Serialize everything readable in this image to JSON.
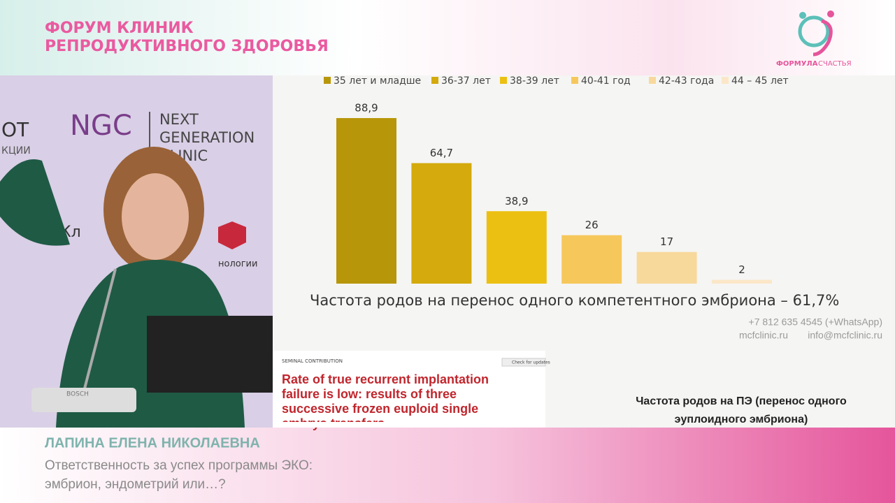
{
  "header": {
    "title_line1": "ФОРУМ КЛИНИК",
    "title_line2": "РЕПРОДУКТИВНОГО ЗДОРОВЬЯ",
    "logo_text1": "ФОРМУЛА",
    "logo_text2": "СЧАСТЬЯ"
  },
  "video": {
    "banner_abbr": "NGC",
    "banner_line1": "NEXT",
    "banner_line2": "GENERATION",
    "banner_line3": "CLINIC",
    "left_text1": "ОТ",
    "left_text2": "КЦИИ",
    "left_text3": "Кл",
    "right_text": "нологии",
    "mic_brand": "BOSCH"
  },
  "chart_data": {
    "type": "bar",
    "categories": [
      "35 лет и младше",
      "36-37 лет",
      "38-39 лет",
      "40-41 год",
      "42-43 года",
      "44 – 45 лет"
    ],
    "values": [
      88.9,
      64.7,
      38.9,
      26,
      17,
      2
    ],
    "value_labels": [
      "88,9",
      "64,7",
      "38,9",
      "26",
      "17",
      "2"
    ],
    "colors": [
      "#b8960a",
      "#d4aa0c",
      "#ecc012",
      "#f6c85c",
      "#f8d99c",
      "#fbe7c8"
    ],
    "caption": "Частота родов на перенос одного компетентного эмбриона – 61,7%"
  },
  "slide": {
    "phone": "+7 812 635 4545 (+WhatsApp)",
    "site": "mcfclinic.ru",
    "email": "info@mcfclinic.ru",
    "paper_section": "SEMINAL CONTRIBUTION",
    "paper_badge": "Check for updates",
    "paper_title": [
      "Rate of true recurrent implantation",
      "failure is low: results of three",
      "successive frozen euploid single",
      "embryo transfers"
    ],
    "note_line1": "Частота родов на ПЭ (перенос одного",
    "note_line2": "эуплоидного эмбриона)"
  },
  "speaker": {
    "name": "ЛАПИНА ЕЛЕНА НИКОЛАЕВНА",
    "topic_line1": "Ответственность за успех программы ЭКО:",
    "topic_line2": "эмбрион, эндометрий или…?"
  }
}
